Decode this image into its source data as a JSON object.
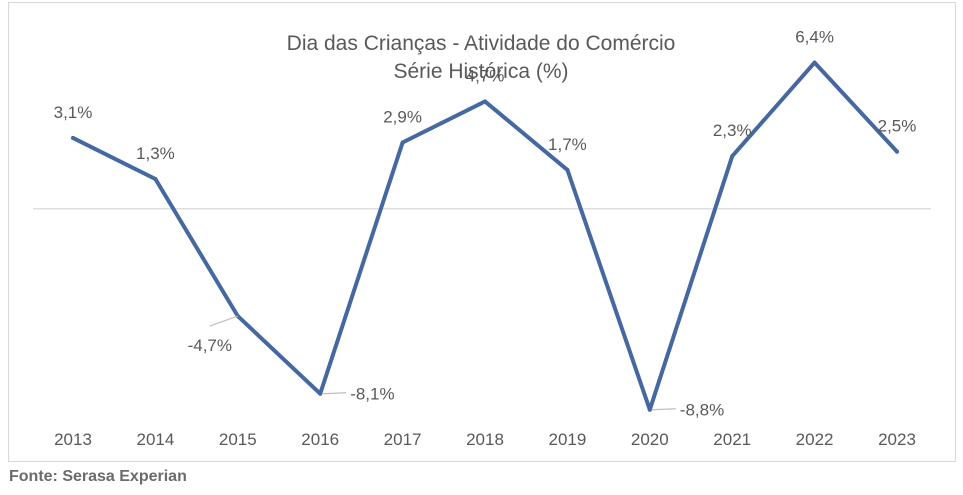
{
  "chart_data": {
    "type": "line",
    "title": "Dia das Crianças - Atividade do Comércio",
    "subtitle": "Série Histórica (%)",
    "categories": [
      "2013",
      "2014",
      "2015",
      "2016",
      "2017",
      "2018",
      "2019",
      "2020",
      "2021",
      "2022",
      "2023"
    ],
    "series": [
      {
        "values": [
          3.1,
          1.3,
          -4.7,
          -8.1,
          2.9,
          4.7,
          1.7,
          -8.8,
          2.3,
          6.4,
          2.5
        ],
        "labels": [
          "3,1%",
          "1,3%",
          "-4,7%",
          "-8,1%",
          "2,9%",
          "4,7%",
          "1,7%",
          "-8,8%",
          "2,3%",
          "6,4%",
          "2,5%"
        ]
      }
    ],
    "xlabel": "",
    "ylabel": "",
    "ylim": [
      -9.6,
      6.6
    ],
    "grid": false,
    "legend": "none",
    "line_color": "#44689f",
    "zero_line_color": "#d9d9d9",
    "leader_line_color": "#bfbfbf",
    "text_color": "#595959"
  },
  "source": "Fonte: Serasa Experian"
}
